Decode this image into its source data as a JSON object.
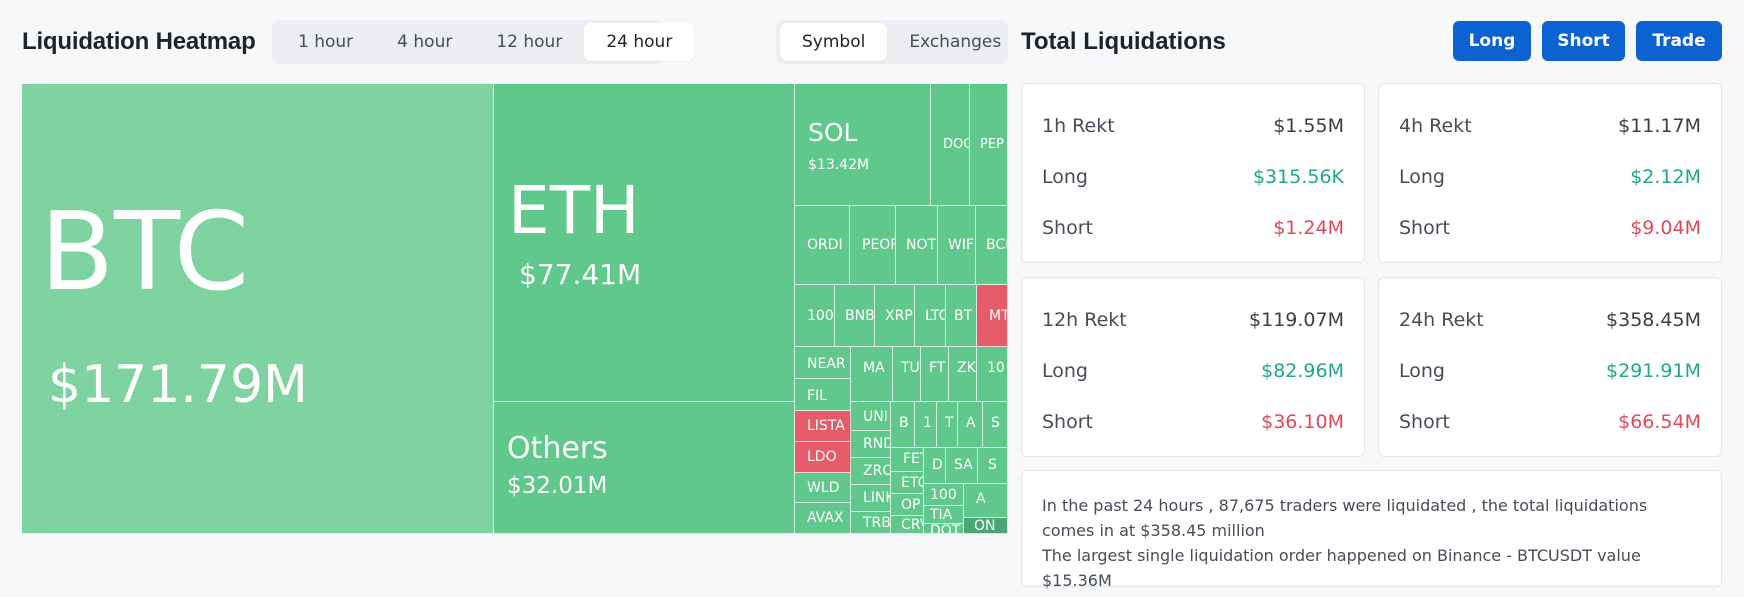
{
  "heatmap": {
    "title": "Liquidation Heatmap",
    "time_options": [
      "1 hour",
      "4 hour",
      "12 hour",
      "24 hour"
    ],
    "time_selected": "24 hour",
    "mode_options": [
      "Symbol",
      "Exchanges"
    ],
    "mode_selected": "Symbol",
    "colors": {
      "long_dominant": "#5fc88a",
      "btc": "#7fd3a0",
      "short_dominant": "#e55b6a"
    },
    "tiles": [
      {
        "id": "btc",
        "symbol": "BTC",
        "value": "$171.79M",
        "short_dominant": false
      },
      {
        "id": "eth",
        "symbol": "ETH",
        "value": "$77.41M",
        "short_dominant": false
      },
      {
        "id": "others",
        "symbol": "Others",
        "value": "$32.01M",
        "short_dominant": false
      },
      {
        "id": "sol",
        "symbol": "SOL",
        "value": "$13.42M",
        "short_dominant": false
      },
      {
        "id": "doge",
        "symbol": "DOG",
        "value": "",
        "short_dominant": false
      },
      {
        "id": "pepe",
        "symbol": "PEP",
        "value": "",
        "short_dominant": false
      },
      {
        "id": "ordi",
        "symbol": "ORDI",
        "value": "",
        "short_dominant": false
      },
      {
        "id": "people",
        "symbol": "PEOP",
        "value": "",
        "short_dominant": false
      },
      {
        "id": "not",
        "symbol": "NOT",
        "value": "",
        "short_dominant": false
      },
      {
        "id": "wif",
        "symbol": "WIF",
        "value": "",
        "short_dominant": false
      },
      {
        "id": "bch",
        "symbol": "BCH",
        "value": "",
        "short_dominant": false
      },
      {
        "id": "1000",
        "symbol": "1000",
        "value": "",
        "short_dominant": false
      },
      {
        "id": "bnb",
        "symbol": "BNB",
        "value": "",
        "short_dominant": false
      },
      {
        "id": "xrp",
        "symbol": "XRP",
        "value": "",
        "short_dominant": false
      },
      {
        "id": "ltc",
        "symbol": "LTC",
        "value": "",
        "short_dominant": false
      },
      {
        "id": "bt",
        "symbol": "BT",
        "value": "",
        "short_dominant": false
      },
      {
        "id": "mt",
        "symbol": "MT",
        "value": "",
        "short_dominant": true
      },
      {
        "id": "near",
        "symbol": "NEAR",
        "value": "",
        "short_dominant": false
      },
      {
        "id": "ma",
        "symbol": "MA",
        "value": "",
        "short_dominant": false
      },
      {
        "id": "tu",
        "symbol": "TU",
        "value": "",
        "short_dominant": false
      },
      {
        "id": "ft",
        "symbol": "FT",
        "value": "",
        "short_dominant": false
      },
      {
        "id": "zk",
        "symbol": "ZK",
        "value": "",
        "short_dominant": false
      },
      {
        "id": "10",
        "symbol": "10",
        "value": "",
        "short_dominant": false
      },
      {
        "id": "fil",
        "symbol": "FIL",
        "value": "",
        "short_dominant": false
      },
      {
        "id": "uni",
        "symbol": "UNI",
        "value": "",
        "short_dominant": false
      },
      {
        "id": "b",
        "symbol": "B",
        "value": "",
        "short_dominant": false
      },
      {
        "id": "one",
        "symbol": "1",
        "value": "",
        "short_dominant": false
      },
      {
        "id": "t",
        "symbol": "T",
        "value": "",
        "short_dominant": false
      },
      {
        "id": "a",
        "symbol": "A",
        "value": "",
        "short_dominant": false
      },
      {
        "id": "s",
        "symbol": "S",
        "value": "",
        "short_dominant": false
      },
      {
        "id": "lista",
        "symbol": "LISTA",
        "value": "",
        "short_dominant": true
      },
      {
        "id": "rnd",
        "symbol": "RND",
        "value": "",
        "short_dominant": false
      },
      {
        "id": "fet",
        "symbol": "FET",
        "value": "",
        "short_dominant": false
      },
      {
        "id": "d",
        "symbol": "D",
        "value": "",
        "short_dominant": false
      },
      {
        "id": "sa",
        "symbol": "SA",
        "value": "",
        "short_dominant": false
      },
      {
        "id": "s2",
        "symbol": "S",
        "value": "",
        "short_dominant": false
      },
      {
        "id": "ldo",
        "symbol": "LDO",
        "value": "",
        "short_dominant": true
      },
      {
        "id": "zro",
        "symbol": "ZRO",
        "value": "",
        "short_dominant": false
      },
      {
        "id": "etc",
        "symbol": "ETC",
        "value": "",
        "short_dominant": false
      },
      {
        "id": "wld",
        "symbol": "WLD",
        "value": "",
        "short_dominant": false
      },
      {
        "id": "link",
        "symbol": "LINK",
        "value": "",
        "short_dominant": false
      },
      {
        "id": "op",
        "symbol": "OP",
        "value": "",
        "short_dominant": false
      },
      {
        "id": "100b",
        "symbol": "100",
        "value": "",
        "short_dominant": false
      },
      {
        "id": "a2",
        "symbol": "A",
        "value": "",
        "short_dominant": false
      },
      {
        "id": "tia",
        "symbol": "TIA",
        "value": "",
        "short_dominant": false
      },
      {
        "id": "avax",
        "symbol": "AVAX",
        "value": "",
        "short_dominant": false
      },
      {
        "id": "trb",
        "symbol": "TRB",
        "value": "",
        "short_dominant": false
      },
      {
        "id": "crv",
        "symbol": "CRV",
        "value": "",
        "short_dominant": false
      },
      {
        "id": "dot",
        "symbol": "DOT",
        "value": "",
        "short_dominant": false
      },
      {
        "id": "ondo",
        "symbol": "ON",
        "value": "",
        "short_dominant": false
      }
    ]
  },
  "total": {
    "title": "Total Liquidations",
    "buttons": {
      "long": "Long",
      "short": "Short",
      "trade": "Trade"
    },
    "cards": [
      {
        "label": "1h Rekt",
        "total": "$1.55M",
        "long_label": "Long",
        "long": "$315.56K",
        "short_label": "Short",
        "short": "$1.24M"
      },
      {
        "label": "4h Rekt",
        "total": "$11.17M",
        "long_label": "Long",
        "long": "$2.12M",
        "short_label": "Short",
        "short": "$9.04M"
      },
      {
        "label": "12h Rekt",
        "total": "$119.07M",
        "long_label": "Long",
        "long": "$82.96M",
        "short_label": "Short",
        "short": "$36.10M"
      },
      {
        "label": "24h Rekt",
        "total": "$358.45M",
        "long_label": "Long",
        "long": "$291.91M",
        "short_label": "Short",
        "short": "$66.54M"
      }
    ],
    "summary_line1": "In the past 24 hours , 87,675 traders were liquidated , the total liquidations comes in at $358.45 million",
    "summary_line2": "The largest single liquidation order happened on Binance - BTCUSDT value $15.36M"
  }
}
